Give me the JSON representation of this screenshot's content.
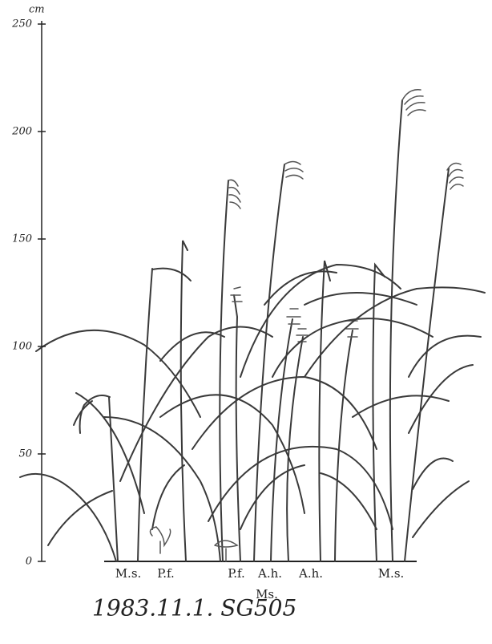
{
  "axis": {
    "unit": "cm",
    "ticks": [
      250,
      200,
      150,
      100,
      50,
      0
    ]
  },
  "species_labels": [
    "M.s.",
    "P.f.",
    "P.f.",
    "A.h.",
    "A.h.",
    "M.s.",
    "Ms."
  ],
  "caption": "1983.11.1. SG505"
}
